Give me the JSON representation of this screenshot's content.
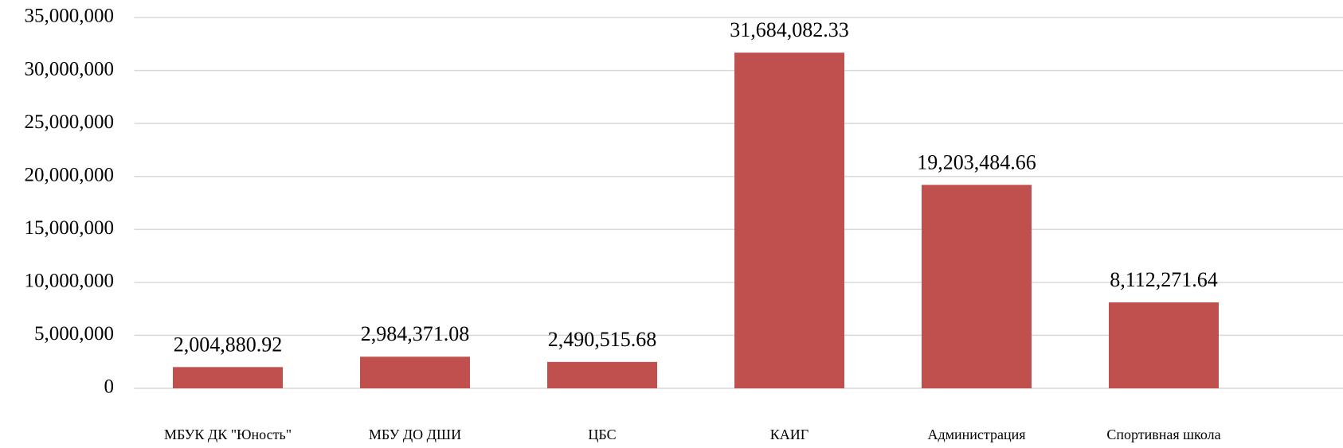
{
  "chart_data": {
    "type": "bar",
    "categories": [
      "МБУК ДК \"Юность\"",
      "МБУ ДО ДШИ",
      "ЦБС",
      "КАИГ",
      "Администрация",
      "Спортивная школа"
    ],
    "values": [
      2004880.92,
      2984371.08,
      2490515.68,
      31684082.33,
      19203484.66,
      8112271.64
    ],
    "value_labels": [
      "2,004,880.92",
      "2,984,371.08",
      "2,490,515.68",
      "31,684,082.33",
      "19,203,484.66",
      "8,112,271.64"
    ],
    "color": "#c0504d",
    "ylim": [
      0,
      35000000
    ],
    "yticks": [
      0,
      {
        "value": 5000000,
        "label": "5,000,000"
      },
      {
        "value": 10000000,
        "label": "10,000,000"
      },
      {
        "value": 15000000,
        "label": "15,000,000"
      },
      {
        "value": 20000000,
        "label": "20,000,000"
      },
      {
        "value": 25000000,
        "label": "25,000,000"
      },
      {
        "value": 30000000,
        "label": "30,000,000"
      },
      {
        "value": 35000000,
        "label": "35,000,000"
      }
    ],
    "grid": true
  }
}
